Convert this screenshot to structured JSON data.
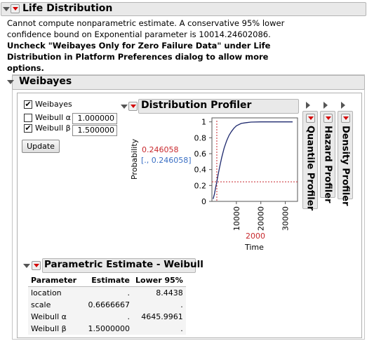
{
  "life_distribution": {
    "title": "Life Distribution",
    "message_line1": "Cannot compute nonparametric estimate. A conservative 95% lower",
    "message_line2": "confidence bound on Exponential parameter is 10014.24602086.",
    "bold_line1": "Uncheck \"Weibayes Only for Zero Failure Data\" under Life",
    "bold_line2": "Distribution in Platform Preferences dialog to allow more",
    "bold_line3": "options."
  },
  "weibayes": {
    "title": "Weibayes",
    "checkbox_weibayes": {
      "label": "Weibayes",
      "checked": true
    },
    "checkbox_alpha": {
      "label": "Weibull α",
      "checked": false,
      "value": "1.000000"
    },
    "checkbox_beta": {
      "label": "Weibull β",
      "checked": true,
      "value": "1.500000"
    },
    "update_label": "Update"
  },
  "profiler": {
    "title": "Distribution Profiler",
    "y_label": "Probability",
    "y_value": "0.246058",
    "y_interval": "[., 0.246058]",
    "x_label": "Time",
    "x_value": "2000",
    "quantile_label": "Quantile Profiler",
    "hazard_label": "Hazard Profiler",
    "density_label": "Density Profiler",
    "colors": {
      "curve": "#1f2a6e",
      "crosshair": "#c8282d",
      "interval": "#3a6fc4"
    }
  },
  "chart_data": {
    "type": "line",
    "title": "",
    "xlabel": "Time",
    "ylabel": "Probability",
    "xlim": [
      0,
      35000
    ],
    "ylim": [
      0,
      1.05
    ],
    "x_ticks": [
      "10000",
      "20000",
      "30000"
    ],
    "y_ticks": [
      "0",
      "0.2",
      "0.4",
      "0.6",
      "0.8",
      "1"
    ],
    "series": [
      {
        "x": [
          500,
          1000,
          1500,
          2000,
          2500,
          3000,
          4000,
          5000,
          6000,
          7000,
          8000,
          9000,
          10000,
          12000,
          14000,
          16000,
          20000,
          25000,
          30000,
          33000
        ],
        "y": [
          0.03,
          0.09,
          0.17,
          0.246,
          0.33,
          0.41,
          0.55,
          0.67,
          0.76,
          0.83,
          0.88,
          0.92,
          0.95,
          0.98,
          0.99,
          0.997,
          1.0,
          1.0,
          1.0,
          1.0
        ]
      }
    ],
    "crosshair": {
      "x": 2000,
      "y": 0.246058
    }
  },
  "parametric": {
    "title": "Parametric Estimate - Weibull",
    "headers": [
      "Parameter",
      "Estimate",
      "Lower 95%"
    ],
    "rows": [
      [
        "location",
        ".",
        "8.4438"
      ],
      [
        "scale",
        "0.6666667",
        "."
      ],
      [
        "Weibull α",
        ".",
        "4645.9961"
      ],
      [
        "Weibull β",
        "1.5000000",
        "."
      ]
    ]
  }
}
